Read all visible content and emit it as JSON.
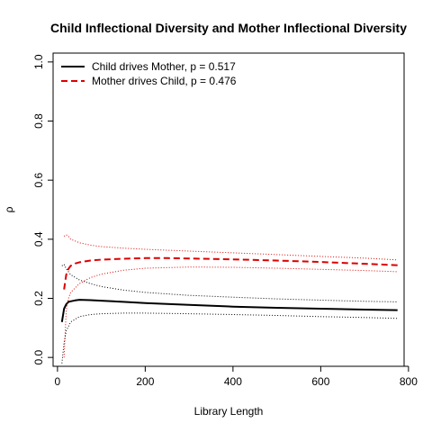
{
  "chart_data": {
    "type": "line",
    "title": "Child Inflectional Diversity and Mother Inflectional Diversity",
    "xlabel": "Library Length",
    "ylabel": "ρ",
    "xlim": [
      -10,
      790
    ],
    "ylim": [
      -0.03,
      1.03
    ],
    "x_ticks": [
      0,
      200,
      400,
      600,
      800
    ],
    "x_tick_labels": [
      "0",
      "200",
      "400",
      "600",
      "800"
    ],
    "y_ticks": [
      0.0,
      0.2,
      0.4,
      0.6,
      0.8,
      1.0
    ],
    "y_tick_labels": [
      "0.0",
      "0.2",
      "0.4",
      "0.6",
      "0.8",
      "1.0"
    ],
    "grid": false,
    "legend_position": "top-left",
    "series": [
      {
        "name": "Child drives Mother, p = 0.517",
        "color": "#000000",
        "style": "solid",
        "x": [
          10,
          15,
          20,
          25,
          30,
          40,
          50,
          75,
          100,
          150,
          200,
          300,
          400,
          500,
          600,
          700,
          775
        ],
        "y": [
          0.12,
          0.165,
          0.18,
          0.188,
          0.19,
          0.193,
          0.195,
          0.194,
          0.192,
          0.188,
          0.184,
          0.178,
          0.172,
          0.168,
          0.165,
          0.162,
          0.16
        ]
      },
      {
        "name": "Mother drives Child, p = 0.476",
        "color": "#dd0000",
        "style": "dashed",
        "x": [
          15,
          20,
          25,
          30,
          40,
          50,
          75,
          100,
          150,
          200,
          250,
          300,
          400,
          500,
          600,
          700,
          775
        ],
        "y": [
          0.23,
          0.28,
          0.3,
          0.31,
          0.318,
          0.322,
          0.328,
          0.331,
          0.334,
          0.336,
          0.336,
          0.335,
          0.332,
          0.328,
          0.323,
          0.317,
          0.312
        ]
      },
      {
        "role": "child-upper-band",
        "color": "#000000",
        "style": "dotted",
        "x": [
          10,
          15,
          20,
          30,
          50,
          75,
          100,
          150,
          200,
          300,
          400,
          500,
          600,
          700,
          775
        ],
        "y": [
          0.31,
          0.315,
          0.3,
          0.28,
          0.262,
          0.25,
          0.24,
          0.228,
          0.22,
          0.21,
          0.204,
          0.198,
          0.194,
          0.19,
          0.188
        ]
      },
      {
        "role": "child-lower-band",
        "color": "#000000",
        "style": "dotted",
        "x": [
          10,
          15,
          20,
          30,
          50,
          75,
          100,
          150,
          200,
          300,
          400,
          500,
          600,
          700,
          775
        ],
        "y": [
          -0.02,
          0.05,
          0.09,
          0.12,
          0.138,
          0.145,
          0.148,
          0.15,
          0.15,
          0.148,
          0.145,
          0.142,
          0.138,
          0.135,
          0.132
        ]
      },
      {
        "role": "mother-upper-band",
        "color": "#dd0000",
        "style": "dotted",
        "x": [
          15,
          20,
          25,
          30,
          50,
          75,
          100,
          150,
          200,
          300,
          400,
          500,
          600,
          700,
          775
        ],
        "y": [
          0.41,
          0.415,
          0.41,
          0.4,
          0.388,
          0.38,
          0.375,
          0.37,
          0.366,
          0.36,
          0.354,
          0.348,
          0.342,
          0.336,
          0.33
        ]
      },
      {
        "role": "mother-lower-band",
        "color": "#dd0000",
        "style": "dotted",
        "x": [
          15,
          20,
          25,
          30,
          50,
          75,
          100,
          150,
          200,
          300,
          400,
          500,
          600,
          700,
          775
        ],
        "y": [
          0.0,
          0.16,
          0.2,
          0.22,
          0.25,
          0.27,
          0.282,
          0.295,
          0.302,
          0.306,
          0.305,
          0.302,
          0.298,
          0.294,
          0.29
        ]
      }
    ]
  }
}
